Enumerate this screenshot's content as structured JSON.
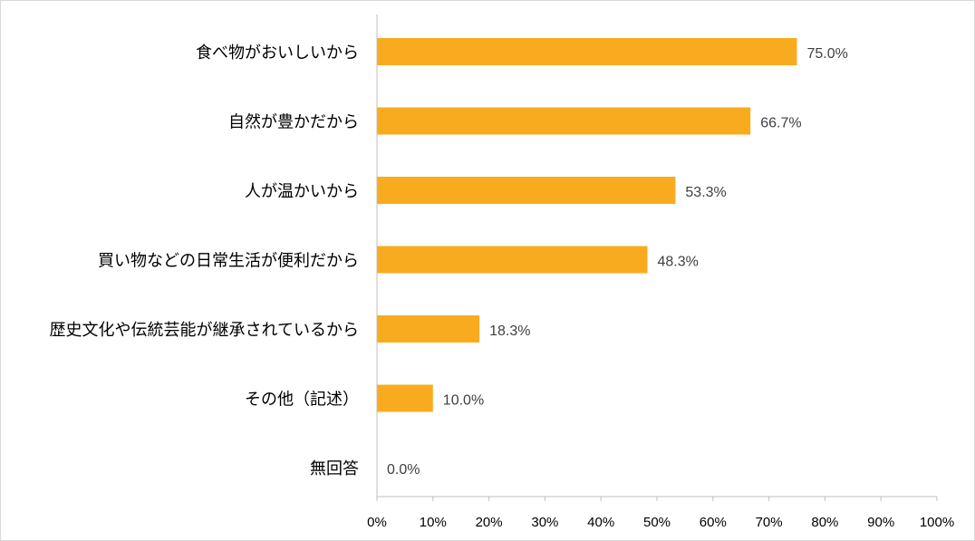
{
  "colors": {
    "bar": "#F9AB1F",
    "axis": "#bfbfbf",
    "text": "#000000",
    "value_text": "#404040"
  },
  "chart_data": {
    "type": "bar",
    "orientation": "horizontal",
    "categories": [
      "食べ物がおいしいから",
      "自然が豊かだから",
      "人が温かいから",
      "買い物などの日常生活が便利だから",
      "歴史文化や伝統芸能が継承されているから",
      "その他（記述）",
      "無回答"
    ],
    "values": [
      75.0,
      66.7,
      53.3,
      48.3,
      18.3,
      10.0,
      0.0
    ],
    "value_labels": [
      "75.0%",
      "66.7%",
      "53.3%",
      "48.3%",
      "18.3%",
      "10.0%",
      "0.0%"
    ],
    "xlim": [
      0,
      100
    ],
    "x_ticks": [
      0,
      10,
      20,
      30,
      40,
      50,
      60,
      70,
      80,
      90,
      100
    ],
    "x_tick_labels": [
      "0%",
      "10%",
      "20%",
      "30%",
      "40%",
      "50%",
      "60%",
      "70%",
      "80%",
      "90%",
      "100%"
    ],
    "grid": false,
    "legend": "none"
  }
}
